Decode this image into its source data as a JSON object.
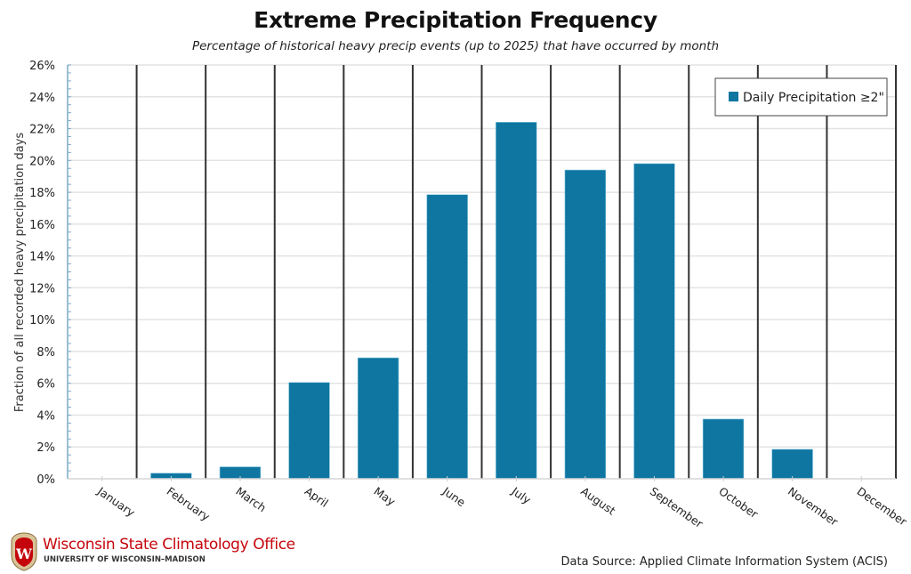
{
  "chart_data": {
    "type": "bar",
    "title": "Extreme Precipitation Frequency",
    "subtitle": "Percentage of historical heavy precip events (up to 2025) that have occurred by month",
    "xlabel": "",
    "ylabel": "Fraction of all recorded heavy precipitation days",
    "ylim": [
      0,
      26
    ],
    "yticks": [
      0,
      2,
      4,
      6,
      8,
      10,
      12,
      14,
      16,
      18,
      20,
      22,
      24,
      26
    ],
    "ytick_suffix": "%",
    "grid": true,
    "categories": [
      "January",
      "February",
      "March",
      "April",
      "May",
      "June",
      "July",
      "August",
      "September",
      "October",
      "November",
      "December"
    ],
    "series": [
      {
        "name": "Daily Precipitation ≥2\"",
        "color": "#0e76a0",
        "values": [
          0.0,
          0.35,
          0.75,
          6.05,
          7.6,
          17.85,
          22.4,
          19.4,
          19.8,
          3.75,
          1.85,
          0.0
        ]
      }
    ],
    "legend_position": "top-right"
  },
  "branding": {
    "org_name": "Wisconsin State Climatology Office",
    "org_sub": "UNIVERSITY OF WISCONSIN–MADISON",
    "crest_letter": "W",
    "brand_color": "#c5050c"
  },
  "footer": {
    "source": "Data Source: Applied Climate Information System (ACIS)"
  }
}
